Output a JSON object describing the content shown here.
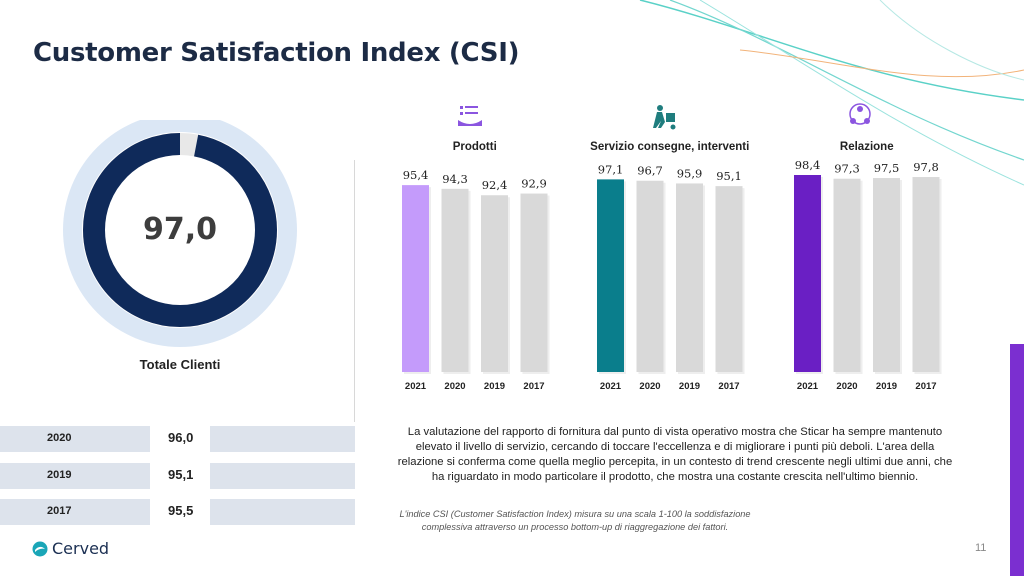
{
  "title": "Customer Satisfaction Index (CSI)",
  "total": {
    "value": "97,0",
    "value_num": 97.0,
    "label": "Totale Clienti",
    "history": [
      {
        "year": "2020",
        "value": "96,0"
      },
      {
        "year": "2019",
        "value": "95,1"
      },
      {
        "year": "2017",
        "value": "95,5"
      }
    ]
  },
  "chart_data": [
    {
      "type": "bar",
      "title": "Prodotti",
      "icon": "checklist-hand-icon",
      "categories": [
        "2021",
        "2020",
        "2019",
        "2017"
      ],
      "values": [
        95.4,
        94.3,
        92.4,
        92.9
      ],
      "labels": [
        "95,4",
        "94,3",
        "92,4",
        "92,9"
      ],
      "highlight_color": "#c49bfb",
      "other_color": "#d9d9d9"
    },
    {
      "type": "bar",
      "title": "Servizio consegne, interventi",
      "icon": "delivery-trolley-icon",
      "categories": [
        "2021",
        "2020",
        "2019",
        "2017"
      ],
      "values": [
        97.1,
        96.7,
        95.9,
        95.1
      ],
      "labels": [
        "97,1",
        "96,7",
        "95,9",
        "95,1"
      ],
      "highlight_color": "#0a7e8c",
      "other_color": "#d9d9d9"
    },
    {
      "type": "bar",
      "title": "Relazione",
      "icon": "people-network-icon",
      "categories": [
        "2021",
        "2020",
        "2019",
        "2017"
      ],
      "values": [
        98.4,
        97.3,
        97.5,
        97.8
      ],
      "labels": [
        "98,4",
        "97,3",
        "97,5",
        "97,8"
      ],
      "highlight_color": "#6a1fc4",
      "other_color": "#d9d9d9"
    }
  ],
  "description": "La valutazione del rapporto di fornitura dal punto di vista operativo mostra che Sticar ha sempre mantenuto elevato il livello di servizio, cercando di toccare l'eccellenza e di migliorare i punti più deboli. L'area della relazione si conferma come quella meglio percepita, in un contesto di trend crescente negli ultimi due anni, che ha riguardato in modo particolare il prodotto, che mostra una costante crescita nell'ultimo biennio.",
  "note": "L'indice CSI (Customer Satisfaction Index) misura su una scala 1-100 la soddisfazione complessiva attraverso un processo bottom-up di riaggregazione dei fattori.",
  "logo_text": "Cerved",
  "page_number": "11",
  "colors": {
    "title": "#1c2b45",
    "donut_ring": "#0f2a5a",
    "donut_halo": "#dbe7f5",
    "accent": "#7b2fd0"
  }
}
